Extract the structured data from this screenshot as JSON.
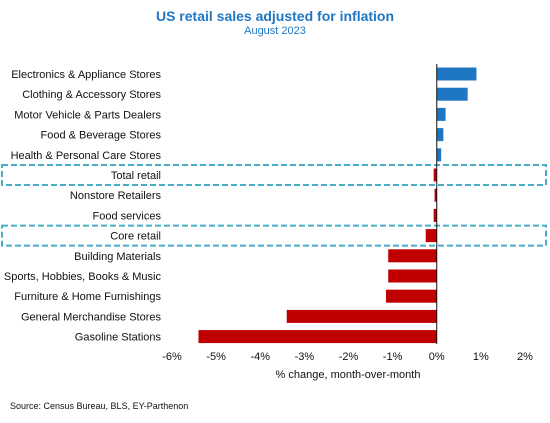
{
  "chart_data": {
    "type": "bar",
    "orientation": "horizontal",
    "title": "US retail sales adjusted for inflation",
    "subtitle": "August 2023",
    "xlabel": "% change, month-over-month",
    "xlim": [
      -6,
      2
    ],
    "ticks": [
      -6,
      -5,
      -4,
      -3,
      -2,
      -1,
      0,
      1,
      2
    ],
    "tick_labels": [
      "-6%",
      "-5%",
      "-4%",
      "-3%",
      "-2%",
      "-1%",
      "0%",
      "1%",
      "2%"
    ],
    "categories": [
      "Electronics & Appliance Stores",
      "Clothing & Accessory Stores",
      "Motor Vehicle & Parts Dealers",
      "Food & Beverage Stores",
      "Health & Personal Care Stores",
      "Total retail",
      "Nonstore Retailers",
      "Food services",
      "Core retail",
      "Building Materials",
      "Sports, Hobbies, Books & Music",
      "Furniture & Home Furnishings",
      "General Merchandise Stores",
      "Gasoline Stations"
    ],
    "values": [
      0.9,
      0.7,
      0.2,
      0.15,
      0.1,
      -0.07,
      -0.05,
      -0.07,
      -0.25,
      -1.1,
      -1.1,
      -1.15,
      -3.4,
      -5.4
    ],
    "highlighted": [
      "Total retail",
      "Core retail"
    ],
    "colors": {
      "positive": "#1f77c4",
      "negative": "#c00000",
      "title": "#1f77c4",
      "highlight": "#4bacc6"
    },
    "grid": false
  },
  "source": "Source: Census Bureau, BLS, EY-Parthenon"
}
